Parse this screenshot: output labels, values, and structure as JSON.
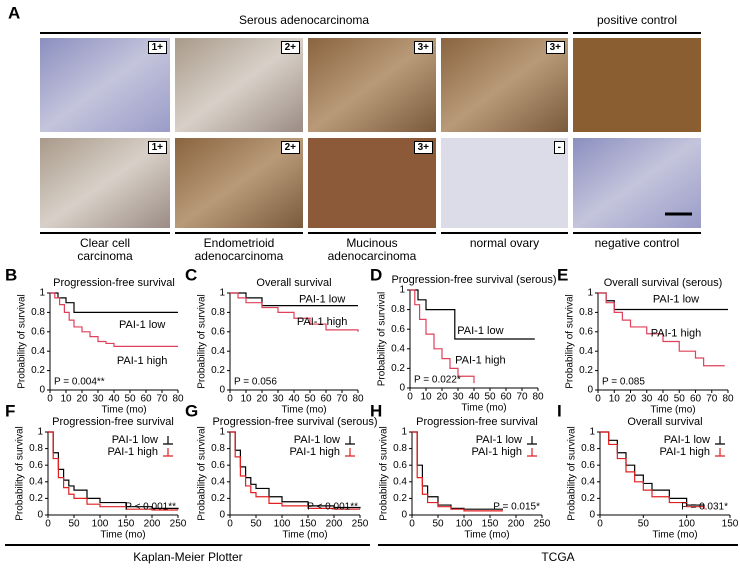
{
  "figure": {
    "panel_labels": [
      "A",
      "B",
      "C",
      "D",
      "E",
      "F",
      "G",
      "H",
      "I"
    ],
    "panel_a": {
      "group_titles": [
        "Serous adenocarcinoma",
        "positive control"
      ],
      "top_scores": [
        "1+",
        "2+",
        "3+",
        "3+"
      ],
      "bottom_scores": [
        "1+",
        "2+",
        "3+",
        "-"
      ],
      "captions": [
        "Clear cell carcinoma",
        "Endometrioid adenocarcinoma",
        "Mucinous adenocarcinoma",
        "normal ovary",
        "negative control"
      ]
    },
    "group_labels": [
      "Kaplan-Meier Plotter",
      "TCGA"
    ]
  },
  "chart_data": [
    {
      "type": "line",
      "step": true,
      "title": "Progression-free survival",
      "xlabel": "Time (mo)",
      "ylabel": "Probability of survival",
      "xlim": [
        0,
        80
      ],
      "ylim": [
        0,
        1
      ],
      "xticks": [
        0,
        10,
        20,
        30,
        40,
        50,
        60,
        70,
        80
      ],
      "yticks": [
        0,
        0.2,
        0.4,
        0.6,
        0.8,
        1
      ],
      "annotation": "P = 0.004**",
      "series": [
        {
          "name": "PAI-1 low",
          "color": "#000000",
          "x": [
            0,
            5,
            10,
            15,
            80
          ],
          "values": [
            1,
            0.95,
            0.9,
            0.8,
            0.8
          ]
        },
        {
          "name": "PAI-1 high",
          "color": "#e0405a",
          "x": [
            0,
            3,
            6,
            9,
            12,
            15,
            20,
            25,
            30,
            35,
            40,
            80
          ],
          "values": [
            1,
            0.95,
            0.88,
            0.8,
            0.72,
            0.65,
            0.6,
            0.55,
            0.5,
            0.48,
            0.45,
            0.45
          ]
        }
      ]
    },
    {
      "type": "line",
      "step": true,
      "title": "Overall survival",
      "xlabel": "Time (mo)",
      "ylabel": "Probability of survival",
      "xlim": [
        0,
        80
      ],
      "ylim": [
        0,
        1
      ],
      "xticks": [
        0,
        10,
        20,
        30,
        40,
        50,
        60,
        70,
        80
      ],
      "yticks": [
        0,
        0.2,
        0.4,
        0.6,
        0.8,
        1
      ],
      "annotation": "P = 0.056",
      "series": [
        {
          "name": "PAI-1 low",
          "color": "#000000",
          "x": [
            0,
            10,
            20,
            80
          ],
          "values": [
            1,
            0.95,
            0.87,
            0.87
          ]
        },
        {
          "name": "PAI-1 high",
          "color": "#e0405a",
          "x": [
            0,
            5,
            10,
            20,
            30,
            40,
            50,
            60,
            80
          ],
          "values": [
            1,
            0.95,
            0.9,
            0.85,
            0.8,
            0.74,
            0.68,
            0.62,
            0.6
          ]
        }
      ]
    },
    {
      "type": "line",
      "step": true,
      "title": "Progression-free survival (serous)",
      "xlabel": "Time (mo)",
      "ylabel": "Probability of survival",
      "xlim": [
        0,
        80
      ],
      "ylim": [
        0,
        1
      ],
      "xticks": [
        0,
        10,
        20,
        30,
        40,
        50,
        60,
        70,
        80
      ],
      "yticks": [
        0,
        0.2,
        0.4,
        0.6,
        0.8,
        1
      ],
      "annotation": "P = 0.022*",
      "series": [
        {
          "name": "PAI-1 low",
          "color": "#000000",
          "x": [
            0,
            5,
            10,
            25,
            28,
            78
          ],
          "values": [
            1,
            0.9,
            0.8,
            0.8,
            0.5,
            0.5
          ]
        },
        {
          "name": "PAI-1 high",
          "color": "#e0405a",
          "x": [
            0,
            3,
            6,
            10,
            15,
            20,
            25,
            30,
            40
          ],
          "values": [
            1,
            0.85,
            0.7,
            0.55,
            0.4,
            0.3,
            0.2,
            0.12,
            0.05
          ]
        }
      ]
    },
    {
      "type": "line",
      "step": true,
      "title": "Overall survival (serous)",
      "xlabel": "Time (mo)",
      "ylabel": "Probability of survival",
      "xlim": [
        0,
        80
      ],
      "ylim": [
        0,
        1
      ],
      "xticks": [
        0,
        10,
        20,
        30,
        40,
        50,
        60,
        70,
        80
      ],
      "yticks": [
        0,
        0.2,
        0.4,
        0.6,
        0.8,
        1
      ],
      "annotation": "P = 0.085",
      "series": [
        {
          "name": "PAI-1 low",
          "color": "#000000",
          "x": [
            0,
            5,
            10,
            80
          ],
          "values": [
            1,
            0.92,
            0.83,
            0.83
          ]
        },
        {
          "name": "PAI-1 high",
          "color": "#e0405a",
          "x": [
            0,
            5,
            10,
            15,
            20,
            30,
            40,
            50,
            60,
            65,
            78
          ],
          "values": [
            1,
            0.9,
            0.8,
            0.72,
            0.65,
            0.58,
            0.5,
            0.4,
            0.33,
            0.25,
            0.25
          ]
        }
      ]
    },
    {
      "type": "line",
      "step": true,
      "legend": "upper right",
      "title": "Progression-free survival",
      "xlabel": "Time (mo)",
      "ylabel": "Probability of survival",
      "xlim": [
        0,
        250
      ],
      "ylim": [
        0,
        1
      ],
      "xticks": [
        0,
        50,
        100,
        150,
        200,
        250
      ],
      "yticks": [
        0,
        0.2,
        0.4,
        0.6,
        0.8,
        1
      ],
      "annotation": "P < 0.001**",
      "series": [
        {
          "name": "PAI-1 low",
          "color": "#000000",
          "x": [
            0,
            10,
            20,
            30,
            40,
            50,
            75,
            100,
            150,
            200,
            250
          ],
          "values": [
            1,
            0.75,
            0.55,
            0.42,
            0.35,
            0.3,
            0.2,
            0.15,
            0.1,
            0.08,
            0.07
          ]
        },
        {
          "name": "PAI-1 high",
          "color": "#e02020",
          "x": [
            0,
            10,
            20,
            30,
            40,
            50,
            75,
            100,
            150,
            200,
            250
          ],
          "values": [
            1,
            0.68,
            0.45,
            0.33,
            0.25,
            0.2,
            0.13,
            0.1,
            0.07,
            0.06,
            0.06
          ]
        }
      ]
    },
    {
      "type": "line",
      "step": true,
      "legend": "upper right",
      "title": "Progression-free survival (serous)",
      "xlabel": "Time (mo)",
      "ylabel": "Probability of survival",
      "xlim": [
        0,
        250
      ],
      "ylim": [
        0,
        1
      ],
      "xticks": [
        0,
        50,
        100,
        150,
        200,
        250
      ],
      "yticks": [
        0,
        0.2,
        0.4,
        0.6,
        0.8,
        1
      ],
      "annotation": "P < 0.001**",
      "series": [
        {
          "name": "PAI-1 low",
          "color": "#000000",
          "x": [
            0,
            10,
            20,
            30,
            40,
            50,
            75,
            100,
            150,
            200,
            250
          ],
          "values": [
            1,
            0.78,
            0.58,
            0.45,
            0.37,
            0.32,
            0.22,
            0.16,
            0.11,
            0.09,
            0.08
          ]
        },
        {
          "name": "PAI-1 high",
          "color": "#e02020",
          "x": [
            0,
            10,
            20,
            30,
            40,
            50,
            75,
            100,
            150,
            200,
            250
          ],
          "values": [
            1,
            0.7,
            0.47,
            0.35,
            0.27,
            0.22,
            0.14,
            0.11,
            0.08,
            0.07,
            0.07
          ]
        }
      ]
    },
    {
      "type": "line",
      "step": true,
      "legend": "upper right",
      "title": "Progression-free survival",
      "xlabel": "Time (mo)",
      "ylabel": "Probability of survival",
      "xlim": [
        0,
        250
      ],
      "ylim": [
        0,
        1
      ],
      "xticks": [
        0,
        50,
        100,
        150,
        200,
        250
      ],
      "yticks": [
        0,
        0.2,
        0.4,
        0.6,
        0.8,
        1
      ],
      "annotation": "P = 0.015*",
      "series": [
        {
          "name": "PAI-1 low",
          "color": "#000000",
          "x": [
            0,
            10,
            20,
            30,
            50,
            75,
            100,
            175
          ],
          "values": [
            1,
            0.6,
            0.35,
            0.22,
            0.12,
            0.08,
            0.07,
            0.07
          ]
        },
        {
          "name": "PAI-1 high",
          "color": "#e02020",
          "x": [
            0,
            10,
            20,
            30,
            50,
            75,
            100,
            175
          ],
          "values": [
            1,
            0.45,
            0.25,
            0.15,
            0.1,
            0.07,
            0.05,
            0.05
          ]
        }
      ]
    },
    {
      "type": "line",
      "step": true,
      "legend": "upper right",
      "title": "Overall survival",
      "xlabel": "Time (mo)",
      "ylabel": "Probability of survival",
      "xlim": [
        0,
        150
      ],
      "ylim": [
        0,
        1
      ],
      "xticks": [
        0,
        50,
        100,
        150
      ],
      "yticks": [
        0,
        0.2,
        0.4,
        0.6,
        0.8,
        1
      ],
      "annotation": "P = 0.031*",
      "series": [
        {
          "name": "PAI-1 low",
          "color": "#000000",
          "x": [
            0,
            10,
            20,
            30,
            40,
            50,
            60,
            80,
            100,
            120
          ],
          "values": [
            1,
            0.9,
            0.75,
            0.6,
            0.48,
            0.38,
            0.3,
            0.2,
            0.12,
            0.08
          ]
        },
        {
          "name": "PAI-1 high",
          "color": "#e02020",
          "x": [
            0,
            10,
            20,
            30,
            40,
            50,
            60,
            80,
            100,
            120
          ],
          "values": [
            1,
            0.85,
            0.68,
            0.52,
            0.4,
            0.3,
            0.22,
            0.15,
            0.1,
            0.07
          ]
        }
      ]
    }
  ]
}
